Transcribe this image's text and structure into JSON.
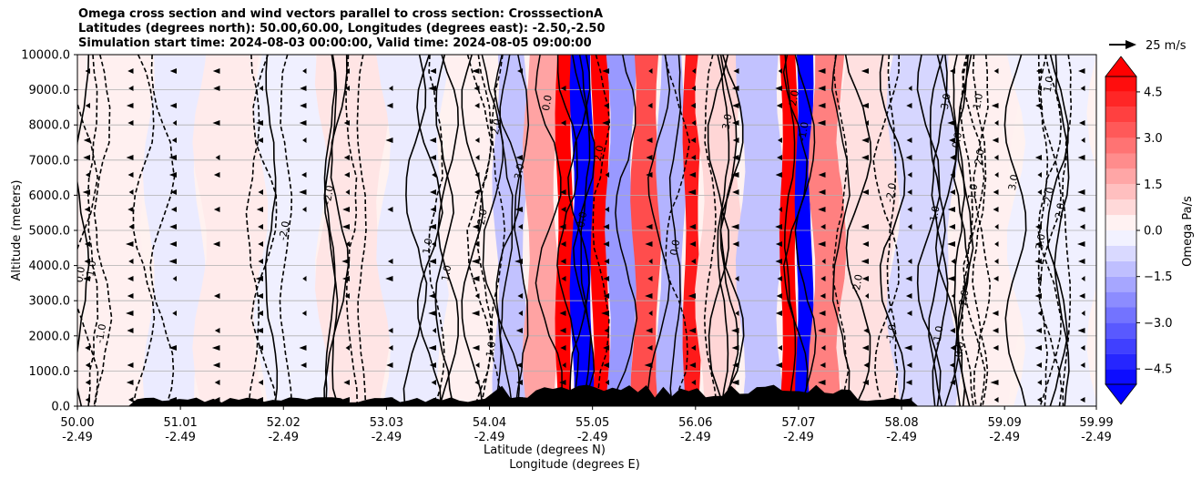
{
  "title_lines": [
    "Omega cross section and wind vectors parallel to cross section: CrosssectionA",
    "Latitudes (degrees north): 50.00,60.00, Longitudes (degrees east): -2.50,-2.50",
    "Simulation start time: 2024-08-03 00:00:00, Valid time: 2024-08-05 09:00:00"
  ],
  "reference_vector_label": "25 m/s",
  "chart_data": {
    "type": "heatmap",
    "title": "Omega cross section and wind vectors parallel to cross section: CrosssectionA",
    "ylabel": "Altitude (meters)",
    "xlabel_lines": [
      "Latitude (degrees N)",
      "Longitude (degrees E)"
    ],
    "y_ticks": [
      "0.0",
      "1000.0",
      "2000.0",
      "3000.0",
      "4000.0",
      "5000.0",
      "6000.0",
      "7000.0",
      "8000.0",
      "9000.0",
      "10000.0"
    ],
    "y_values": [
      0,
      1000,
      2000,
      3000,
      4000,
      5000,
      6000,
      7000,
      8000,
      9000,
      10000
    ],
    "ylim": [
      0,
      10000
    ],
    "x_ticks": [
      {
        "lat": "50.00",
        "lon": "-2.49"
      },
      {
        "lat": "51.01",
        "lon": "-2.49"
      },
      {
        "lat": "52.02",
        "lon": "-2.49"
      },
      {
        "lat": "53.03",
        "lon": "-2.49"
      },
      {
        "lat": "54.04",
        "lon": "-2.49"
      },
      {
        "lat": "55.05",
        "lon": "-2.49"
      },
      {
        "lat": "56.06",
        "lon": "-2.49"
      },
      {
        "lat": "57.07",
        "lon": "-2.49"
      },
      {
        "lat": "58.08",
        "lon": "-2.49"
      },
      {
        "lat": "59.09",
        "lon": "-2.49"
      },
      {
        "lat": "59.99",
        "lon": "-2.49"
      }
    ],
    "xlim": [
      50.0,
      59.99
    ],
    "grid": "horizontal",
    "colorbar": {
      "label": "Omega Pa/s",
      "ticks": [
        "−4.5",
        "−3.0",
        "−1.5",
        "0.0",
        "1.5",
        "3.0",
        "4.5"
      ],
      "tick_values": [
        -4.5,
        -3.0,
        -1.5,
        0.0,
        1.5,
        3.0,
        4.5
      ],
      "range": [
        -5.0,
        5.0
      ],
      "extend": "both",
      "colormap": "bwr",
      "min_color": "#0000ff",
      "max_color": "#ff0000"
    },
    "omega_bands": [
      {
        "from": 50.0,
        "to": 50.7,
        "value": 0.3
      },
      {
        "from": 50.7,
        "to": 51.2,
        "value": -0.4
      },
      {
        "from": 51.2,
        "to": 51.8,
        "value": 0.4
      },
      {
        "from": 51.8,
        "to": 52.4,
        "value": -0.3
      },
      {
        "from": 52.4,
        "to": 53.0,
        "value": 0.5
      },
      {
        "from": 53.0,
        "to": 53.6,
        "value": -0.4
      },
      {
        "from": 53.6,
        "to": 54.1,
        "value": 0.3
      },
      {
        "from": 54.1,
        "to": 54.4,
        "value": -1.2
      },
      {
        "from": 54.4,
        "to": 54.7,
        "value": 1.8
      },
      {
        "from": 54.7,
        "to": 54.85,
        "value": 5.0
      },
      {
        "from": 54.85,
        "to": 55.05,
        "value": -5.0
      },
      {
        "from": 55.05,
        "to": 55.2,
        "value": 5.0
      },
      {
        "from": 55.2,
        "to": 55.45,
        "value": -2.0
      },
      {
        "from": 55.45,
        "to": 55.7,
        "value": 3.5
      },
      {
        "from": 55.7,
        "to": 55.95,
        "value": -1.5
      },
      {
        "from": 55.95,
        "to": 56.1,
        "value": 4.5
      },
      {
        "from": 56.1,
        "to": 56.5,
        "value": 0.8
      },
      {
        "from": 56.5,
        "to": 56.9,
        "value": -1.2
      },
      {
        "from": 56.9,
        "to": 57.05,
        "value": 5.0
      },
      {
        "from": 57.05,
        "to": 57.2,
        "value": -5.0
      },
      {
        "from": 57.2,
        "to": 57.5,
        "value": 2.5
      },
      {
        "from": 57.5,
        "to": 58.0,
        "value": 0.6
      },
      {
        "from": 58.0,
        "to": 58.6,
        "value": -0.8
      },
      {
        "from": 58.6,
        "to": 59.2,
        "value": 0.3
      },
      {
        "from": 59.2,
        "to": 59.99,
        "value": -0.3
      }
    ],
    "contour_labels": [
      "0.0",
      "1.0",
      "-1.0",
      "2.0",
      "-2.0",
      "3.0"
    ],
    "wind_vectors": {
      "direction": "toward decreasing latitude",
      "reference_speed": "25 m/s"
    }
  }
}
